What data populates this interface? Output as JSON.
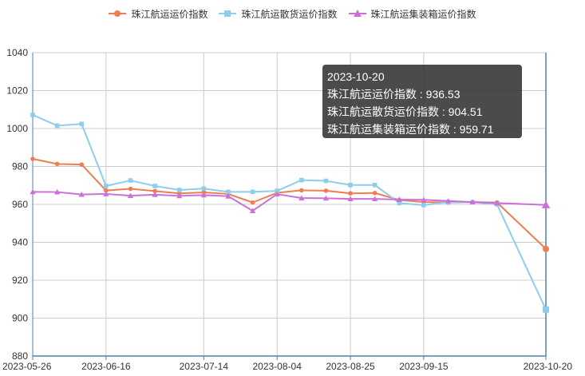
{
  "chart_data": {
    "type": "line",
    "x": [
      "2023-05-26",
      "2023-06-02",
      "2023-06-09",
      "2023-06-16",
      "2023-06-23",
      "2023-06-30",
      "2023-07-07",
      "2023-07-14",
      "2023-07-21",
      "2023-07-28",
      "2023-08-04",
      "2023-08-11",
      "2023-08-18",
      "2023-08-25",
      "2023-09-01",
      "2023-09-08",
      "2023-09-15",
      "2023-09-22",
      "2023-09-29",
      "2023-10-06",
      "2023-10-20"
    ],
    "x_tick_labels": [
      "2023-05-26",
      "2023-06-16",
      "2023-07-14",
      "2023-08-04",
      "2023-08-25",
      "2023-09-15",
      "2023-10-20"
    ],
    "y_ticks": [
      880,
      900,
      920,
      940,
      960,
      980,
      1000,
      1020,
      1040
    ],
    "ylim": [
      880,
      1040
    ],
    "grid": true,
    "legend_position": "top-center",
    "series": [
      {
        "name": "珠江航运运价指数",
        "color": "#ee7e4f",
        "marker": "circle",
        "values": [
          984,
          981.3,
          981,
          967.3,
          968.2,
          967,
          965.8,
          966.3,
          965.5,
          961,
          966.1,
          967.4,
          967.2,
          965.8,
          966,
          962.3,
          961.2,
          961,
          961.2,
          961,
          936.53
        ]
      },
      {
        "name": "珠江航运散货运价指数",
        "color": "#8dcdee",
        "marker": "square",
        "values": [
          1007.2,
          1001.5,
          1002.4,
          969.7,
          972.6,
          969.7,
          967.6,
          968.3,
          966.6,
          966.6,
          967.1,
          972.8,
          972.4,
          970.2,
          970.2,
          960.7,
          959.6,
          961.2,
          961.1,
          960,
          904.51
        ]
      },
      {
        "name": "珠江航运集装箱运价指数",
        "color": "#cc6fd8",
        "marker": "triangle",
        "values": [
          966.6,
          966.5,
          965.2,
          965.5,
          964.6,
          965.1,
          964.5,
          964.9,
          964.3,
          956.6,
          965.4,
          963.3,
          963.2,
          962.9,
          962.9,
          962.5,
          962.4,
          961.8,
          961.2,
          960.7,
          959.71
        ]
      }
    ]
  },
  "tooltip": {
    "date": "2023-10-20",
    "line1": "珠江航运运价指数 : 936.53",
    "line2": "珠江航运散货运价指数 : 904.51",
    "line3": "珠江航运集装箱运价指数 : 959.71"
  }
}
